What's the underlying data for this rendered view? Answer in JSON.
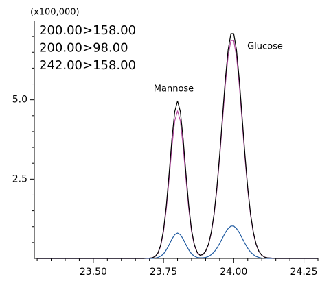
{
  "chart_data": {
    "type": "line",
    "y_unit_label": "(x100,000)",
    "x": [
      23.3,
      23.65,
      23.66,
      23.67,
      23.68,
      23.69,
      23.7,
      23.71,
      23.72,
      23.73,
      23.74,
      23.75,
      23.76,
      23.77,
      23.78,
      23.79,
      23.8,
      23.81,
      23.82,
      23.83,
      23.84,
      23.85,
      23.86,
      23.87,
      23.88,
      23.89,
      23.9,
      23.91,
      23.92,
      23.93,
      23.94,
      23.95,
      23.96,
      23.97,
      23.98,
      23.99,
      24.0,
      24.01,
      24.02,
      24.03,
      24.04,
      24.05,
      24.06,
      24.07,
      24.08,
      24.09,
      24.1,
      24.11,
      24.12,
      24.15,
      24.3
    ],
    "series": [
      {
        "name": "200.00>158.00",
        "color": "#000000",
        "values": [
          0,
          0,
          0,
          0,
          0,
          0.01,
          0.01,
          0.02,
          0.06,
          0.17,
          0.42,
          0.89,
          1.66,
          2.68,
          3.77,
          4.63,
          4.96,
          4.63,
          3.77,
          2.68,
          1.66,
          0.89,
          0.43,
          0.19,
          0.1,
          0.12,
          0.23,
          0.44,
          0.82,
          1.4,
          2.23,
          3.28,
          4.46,
          5.63,
          6.57,
          7.09,
          7.09,
          6.57,
          5.63,
          4.46,
          3.28,
          2.23,
          1.4,
          0.82,
          0.44,
          0.22,
          0.1,
          0.04,
          0.02,
          0,
          0
        ]
      },
      {
        "name": "200.00>98.00",
        "color": "#b0489e",
        "values": [
          0,
          0,
          0,
          0,
          0,
          0.01,
          0.01,
          0.02,
          0.06,
          0.16,
          0.39,
          0.84,
          1.56,
          2.51,
          3.53,
          4.34,
          4.65,
          4.34,
          3.53,
          2.51,
          1.56,
          0.84,
          0.4,
          0.18,
          0.1,
          0.12,
          0.22,
          0.43,
          0.79,
          1.36,
          2.16,
          3.18,
          4.32,
          5.46,
          6.37,
          6.87,
          6.87,
          6.37,
          5.46,
          4.32,
          3.18,
          2.16,
          1.36,
          0.79,
          0.43,
          0.21,
          0.1,
          0.04,
          0.02,
          0,
          0
        ]
      },
      {
        "name": "242.00>158.00",
        "color": "#1f5aa0",
        "values": [
          0,
          0,
          0,
          0,
          0,
          0,
          0,
          0,
          0.01,
          0.03,
          0.07,
          0.14,
          0.27,
          0.43,
          0.61,
          0.75,
          0.8,
          0.75,
          0.61,
          0.43,
          0.27,
          0.14,
          0.07,
          0.03,
          0.02,
          0.02,
          0.03,
          0.06,
          0.12,
          0.2,
          0.32,
          0.47,
          0.64,
          0.81,
          0.94,
          1.02,
          1.02,
          0.94,
          0.81,
          0.64,
          0.47,
          0.32,
          0.2,
          0.12,
          0.06,
          0.03,
          0.01,
          0.01,
          0,
          0,
          0
        ]
      }
    ],
    "annotations": [
      "Mannose",
      "Glucose"
    ],
    "xlim": [
      23.29,
      24.3
    ],
    "ylim": [
      0,
      7.5
    ],
    "xticks": [
      {
        "value": 23.5,
        "label": "23.50"
      },
      {
        "value": 23.75,
        "label": "23.75"
      },
      {
        "value": 24.0,
        "label": "24.00"
      },
      {
        "value": 24.25,
        "label": "24.25"
      }
    ],
    "yticks": [
      2.5,
      {
        "value": 5,
        "label": "5.0"
      }
    ],
    "xminor": [
      23.3,
      23.35,
      23.4,
      23.45,
      23.55,
      23.6,
      23.65,
      23.7,
      23.8,
      23.85,
      23.9,
      23.95,
      24.05,
      24.1,
      24.15,
      24.2,
      24.3
    ],
    "yminor": [
      0.5,
      1.0,
      1.5,
      2.0,
      3.0,
      3.5,
      4.0,
      4.5,
      5.5,
      6.0,
      6.5,
      7.0
    ],
    "grid": false
  }
}
